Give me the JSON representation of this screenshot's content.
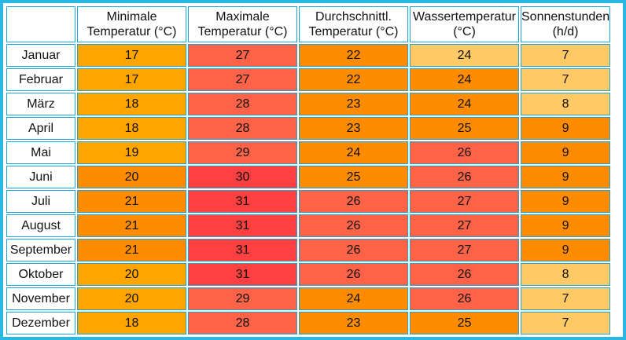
{
  "table": {
    "headers": [
      {
        "line1": "Minimale",
        "line2": "Temperatur (°C)"
      },
      {
        "line1": "Maximale",
        "line2": "Temperatur (°C)"
      },
      {
        "line1": "Durchschnittl.",
        "line2": "Temperatur (°C)"
      },
      {
        "line1": "Wassertemperatur",
        "line2": "(°C)"
      },
      {
        "line1": "Sonnenstunden",
        "line2": "(h/d)"
      }
    ],
    "rows": [
      {
        "month": "Januar",
        "cells": [
          "17",
          "27",
          "22",
          "24",
          "7"
        ]
      },
      {
        "month": "Februar",
        "cells": [
          "17",
          "27",
          "22",
          "24",
          "7"
        ]
      },
      {
        "month": "März",
        "cells": [
          "18",
          "28",
          "23",
          "24",
          "8"
        ]
      },
      {
        "month": "April",
        "cells": [
          "18",
          "28",
          "23",
          "25",
          "9"
        ]
      },
      {
        "month": "Mai",
        "cells": [
          "19",
          "29",
          "24",
          "26",
          "9"
        ]
      },
      {
        "month": "Juni",
        "cells": [
          "20",
          "30",
          "25",
          "26",
          "9"
        ]
      },
      {
        "month": "Juli",
        "cells": [
          "21",
          "31",
          "26",
          "27",
          "9"
        ]
      },
      {
        "month": "August",
        "cells": [
          "21",
          "31",
          "26",
          "27",
          "9"
        ]
      },
      {
        "month": "September",
        "cells": [
          "21",
          "31",
          "26",
          "27",
          "9"
        ]
      },
      {
        "month": "Oktober",
        "cells": [
          "20",
          "31",
          "26",
          "26",
          "8"
        ]
      },
      {
        "month": "November",
        "cells": [
          "20",
          "29",
          "24",
          "26",
          "7"
        ]
      },
      {
        "month": "Dezember",
        "cells": [
          "18",
          "28",
          "23",
          "25",
          "7"
        ]
      }
    ],
    "cell_colors": [
      [
        "#ffa500",
        "#ff6347",
        "#ff8c00",
        "#ffc966",
        "#ffc966"
      ],
      [
        "#ffa500",
        "#ff6347",
        "#ff8c00",
        "#ff8c00",
        "#ffc966"
      ],
      [
        "#ffa500",
        "#ff6347",
        "#ff8c00",
        "#ff8c00",
        "#ffc966"
      ],
      [
        "#ffa500",
        "#ff6347",
        "#ff8c00",
        "#ff8c00",
        "#ff8c00"
      ],
      [
        "#ffa500",
        "#ff6347",
        "#ff8c00",
        "#ff6347",
        "#ff8c00"
      ],
      [
        "#ff8c00",
        "#ff4040",
        "#ff8c00",
        "#ff6347",
        "#ff8c00"
      ],
      [
        "#ff8c00",
        "#ff4040",
        "#ff6347",
        "#ff6347",
        "#ff8c00"
      ],
      [
        "#ff8c00",
        "#ff4040",
        "#ff6347",
        "#ff6347",
        "#ff8c00"
      ],
      [
        "#ff8c00",
        "#ff4040",
        "#ff6347",
        "#ff6347",
        "#ff8c00"
      ],
      [
        "#ffa500",
        "#ff4040",
        "#ff6347",
        "#ff6347",
        "#ffc966"
      ],
      [
        "#ffa500",
        "#ff6347",
        "#ff8c00",
        "#ff6347",
        "#ffc966"
      ],
      [
        "#ffa500",
        "#ff6347",
        "#ff8c00",
        "#ff8c00",
        "#ffc966"
      ]
    ],
    "colors": {
      "frame": "#29b7e4",
      "cell_border": "#1aa6d8"
    }
  }
}
